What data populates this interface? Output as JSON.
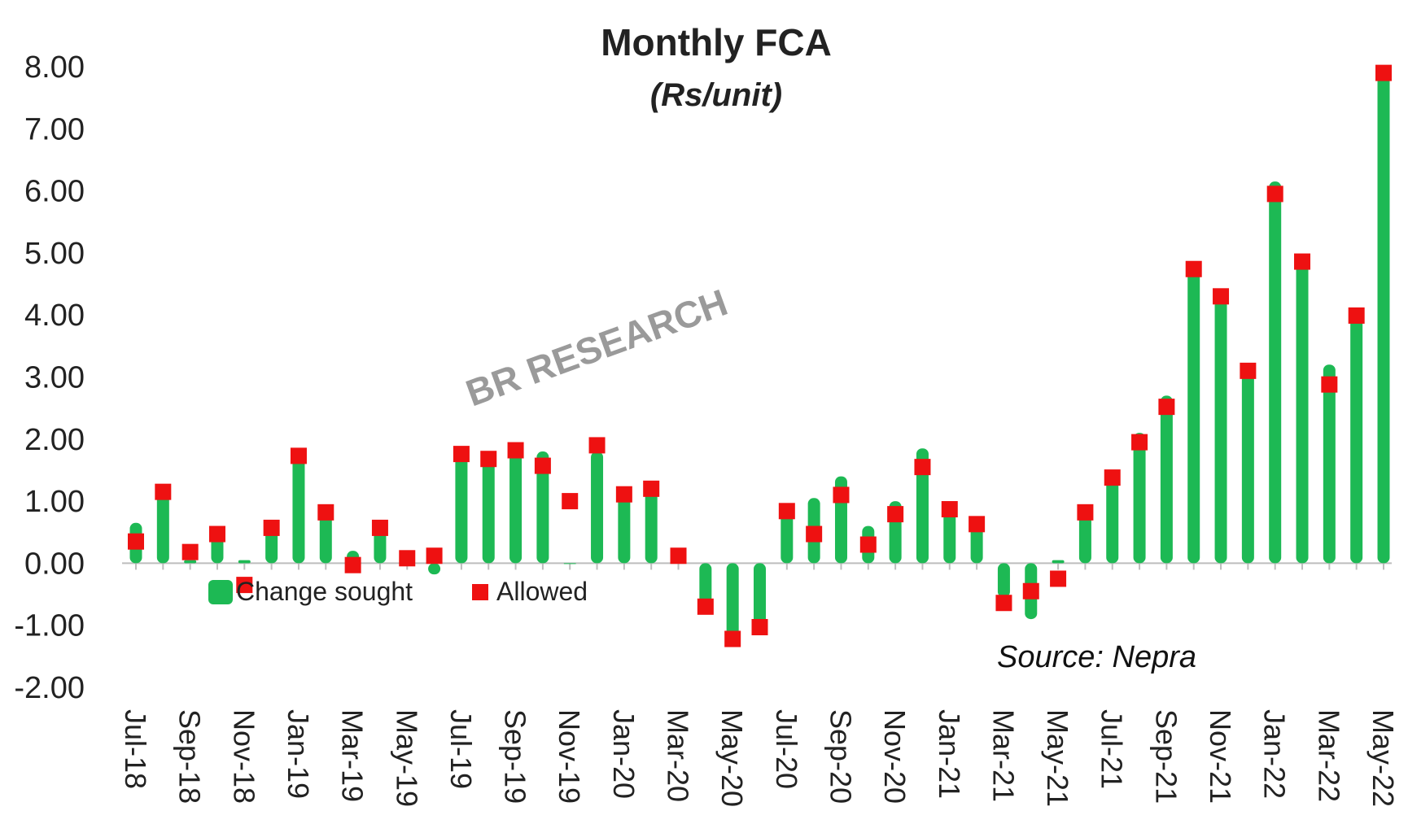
{
  "chart_data": {
    "type": "bar",
    "title": "Monthly FCA",
    "subtitle": "(Rs/unit)",
    "watermark": "BR RESEARCH",
    "source": "Source: Nepra",
    "ylim": [
      -2,
      8
    ],
    "yticks": [
      "8.00",
      "7.00",
      "6.00",
      "5.00",
      "4.00",
      "3.00",
      "2.00",
      "1.00",
      "0.00",
      "-1.00",
      "-2.00"
    ],
    "ytick_values": [
      8,
      7,
      6,
      5,
      4,
      3,
      2,
      1,
      0,
      -1,
      -2
    ],
    "categories": [
      "Jul-18",
      "Aug-18",
      "Sep-18",
      "Oct-18",
      "Nov-18",
      "Dec-18",
      "Jan-19",
      "Feb-19",
      "Mar-19",
      "Apr-19",
      "May-19",
      "Jun-19",
      "Jul-19",
      "Aug-19",
      "Sep-19",
      "Oct-19",
      "Nov-19",
      "Dec-19",
      "Jan-20",
      "Feb-20",
      "Mar-20",
      "Apr-20",
      "May-20",
      "Jun-20",
      "Jul-20",
      "Aug-20",
      "Sep-20",
      "Oct-20",
      "Nov-20",
      "Dec-20",
      "Jan-21",
      "Feb-21",
      "Mar-21",
      "Apr-21",
      "May-21",
      "Jun-21",
      "Jul-21",
      "Aug-21",
      "Sep-21",
      "Oct-21",
      "Nov-21",
      "Dec-21",
      "Jan-22",
      "Feb-22",
      "Mar-22",
      "Apr-22",
      "May-22"
    ],
    "xtick_labels": [
      "Jul-18",
      "",
      "Sep-18",
      "",
      "Nov-18",
      "",
      "Jan-19",
      "",
      "Mar-19",
      "",
      "May-19",
      "",
      "Jul-19",
      "",
      "Sep-19",
      "",
      "Nov-19",
      "",
      "Jan-20",
      "",
      "Mar-20",
      "",
      "May-20",
      "",
      "Jul-20",
      "",
      "Sep-20",
      "",
      "Nov-20",
      "",
      "Jan-21",
      "",
      "Mar-21",
      "",
      "May-21",
      "",
      "Jul-21",
      "",
      "Sep-21",
      "",
      "Nov-21",
      "",
      "Jan-22",
      "",
      "Mar-22",
      "",
      "May-22"
    ],
    "series": [
      {
        "name": "Change sought",
        "color": "#1db954",
        "values": [
          0.65,
          1.15,
          0.05,
          0.45,
          0.05,
          0.55,
          1.85,
          0.8,
          0.2,
          0.55,
          0.05,
          -0.18,
          1.8,
          1.65,
          1.8,
          1.8,
          0.0,
          1.8,
          1.1,
          1.2,
          0.05,
          -0.65,
          -1.2,
          -1.0,
          0.85,
          1.05,
          1.4,
          0.6,
          1.0,
          1.85,
          0.85,
          0.6,
          -0.55,
          -0.9,
          0.05,
          0.8,
          1.35,
          2.1,
          2.7,
          4.7,
          4.25,
          3.05,
          6.15,
          4.95,
          3.2,
          4.1,
          7.9
        ]
      },
      {
        "name": "Allowed",
        "color": "#ee1111",
        "values": [
          0.35,
          1.15,
          0.18,
          0.47,
          -0.35,
          0.57,
          1.73,
          0.82,
          -0.03,
          0.57,
          0.08,
          0.12,
          1.76,
          1.68,
          1.82,
          1.57,
          1.0,
          1.9,
          1.11,
          1.2,
          0.12,
          -0.7,
          -1.22,
          -1.03,
          0.84,
          0.47,
          1.1,
          0.3,
          0.79,
          1.55,
          0.87,
          0.63,
          -0.64,
          -0.45,
          -0.25,
          0.82,
          1.38,
          1.95,
          2.52,
          4.74,
          4.3,
          3.1,
          5.95,
          4.86,
          2.88,
          3.99,
          7.9
        ]
      }
    ],
    "legend_position": "bottom-left (inside plot, below zero line)",
    "grid": false
  }
}
